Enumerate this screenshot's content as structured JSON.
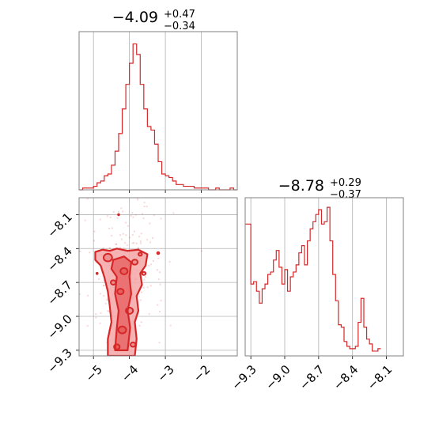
{
  "colors": {
    "series": "#d62728",
    "fill_light": "#f4a6a6",
    "fill_mid": "#ea6a6a",
    "grid": "#b0b0b0",
    "frame": "#808080"
  },
  "chart_data": [
    {
      "type": "histogram",
      "panel": "marginal-x",
      "title": {
        "value": "−4.09",
        "plus": "+0.47",
        "minus": "−0.34"
      },
      "xlim": [
        -5.4,
        -1.0
      ],
      "xticks": [
        -5,
        -4,
        -3,
        -2
      ],
      "bin_width": 0.1,
      "bin_start": -5.4,
      "counts": [
        0,
        1,
        1,
        1,
        2,
        4,
        5,
        8,
        9,
        14,
        22,
        32,
        46,
        60,
        72,
        83,
        77,
        60,
        46,
        36,
        34,
        26,
        16,
        9,
        8,
        7,
        5,
        3,
        3,
        2,
        2,
        2,
        1,
        1,
        1,
        1,
        0,
        0,
        1,
        0,
        0,
        0,
        1,
        0
      ],
      "ylim": [
        0,
        90
      ],
      "grid": true
    },
    {
      "type": "histogram",
      "panel": "marginal-y",
      "title": {
        "value": "−8.78",
        "plus": "+0.29",
        "minus": "−0.37"
      },
      "xlim": [
        -9.35,
        -7.95
      ],
      "xticks": [
        -9.3,
        -9.0,
        -8.7,
        -8.4,
        -8.1
      ],
      "tick_labels": [
        "−9.3",
        "−9.0",
        "−8.7",
        "−8.4",
        "−8.1"
      ],
      "bin_width": 0.025,
      "bin_start": -9.35,
      "counts": [
        55,
        55,
        30,
        31,
        27,
        22,
        28,
        30,
        34,
        35,
        40,
        44,
        37,
        30,
        36,
        27,
        33,
        35,
        38,
        43,
        46,
        38,
        48,
        53,
        56,
        59,
        61,
        55,
        56,
        62,
        48,
        34,
        23,
        13,
        12,
        6,
        4,
        3,
        3,
        4,
        14,
        24,
        12,
        7,
        5,
        2,
        2,
        3
      ],
      "ylim": [
        0,
        66
      ],
      "grid": true
    },
    {
      "type": "scatter",
      "panel": "joint",
      "xlim": [
        -5.4,
        -1.0
      ],
      "ylim": [
        -9.35,
        -7.95
      ],
      "xticks": [
        -5,
        -4,
        -3,
        -2
      ],
      "x_tick_labels": [
        "−5",
        "−4",
        "−3",
        "−2"
      ],
      "yticks": [
        -8.1,
        -8.4,
        -8.7,
        -9.0,
        -9.3
      ],
      "y_tick_labels": [
        "−8.1",
        "−8.4",
        "−8.7",
        "−9.0",
        "−9.3"
      ],
      "contour": "filled 1σ/2σ density regions concentrated near x ≈ −4.2, spanning y from −8.43 to −9.35",
      "grid": true
    }
  ]
}
